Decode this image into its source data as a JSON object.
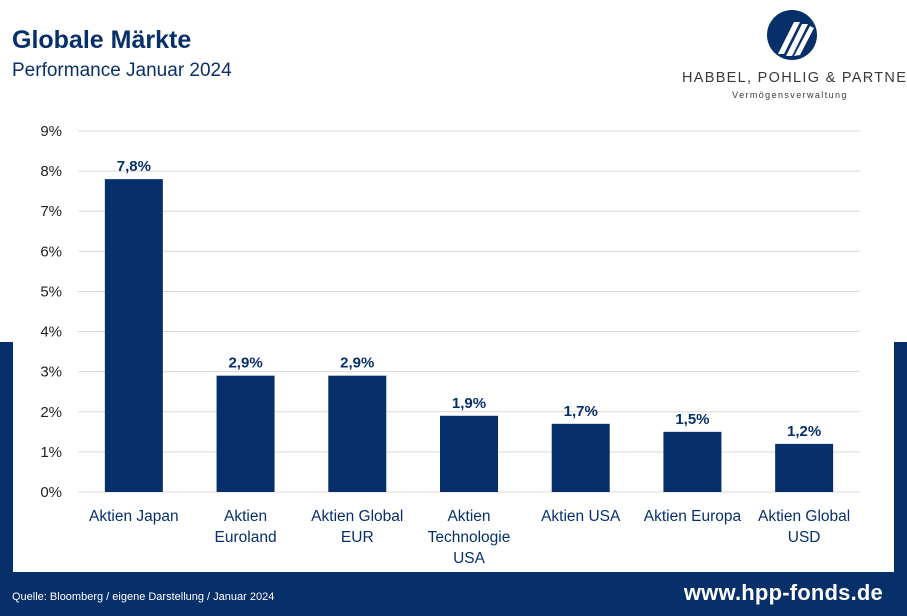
{
  "header": {
    "title": "Globale Märkte",
    "subtitle": "Performance Januar 2024"
  },
  "logo": {
    "name": "HABBEL, POHLIG & PARTNER",
    "tagline": "Vermögensverwaltung",
    "color": "#07306b"
  },
  "footer": {
    "source": "Quelle: Bloomberg / eigene Darstellung / Januar 2024",
    "website": "www.hpp-fonds.de"
  },
  "colors": {
    "brand": "#07306b",
    "grid": "#d9d9d9"
  },
  "chart_data": {
    "type": "bar",
    "title": "",
    "xlabel": "",
    "ylabel": "",
    "ylim": [
      0,
      9
    ],
    "grid": true,
    "yticks": [
      "0%",
      "1%",
      "2%",
      "3%",
      "4%",
      "5%",
      "6%",
      "7%",
      "8%",
      "9%"
    ],
    "categories": [
      [
        "Aktien Japan"
      ],
      [
        "Aktien",
        "Euroland"
      ],
      [
        "Aktien Global",
        "EUR"
      ],
      [
        "Aktien",
        "Technologie",
        "USA"
      ],
      [
        "Aktien USA"
      ],
      [
        "Aktien Europa"
      ],
      [
        "Aktien Global",
        "USD"
      ]
    ],
    "values": [
      7.8,
      2.9,
      2.9,
      1.9,
      1.7,
      1.5,
      1.2
    ],
    "data_labels": [
      "7,8%",
      "2,9%",
      "2,9%",
      "1,9%",
      "1,7%",
      "1,5%",
      "1,2%"
    ]
  }
}
